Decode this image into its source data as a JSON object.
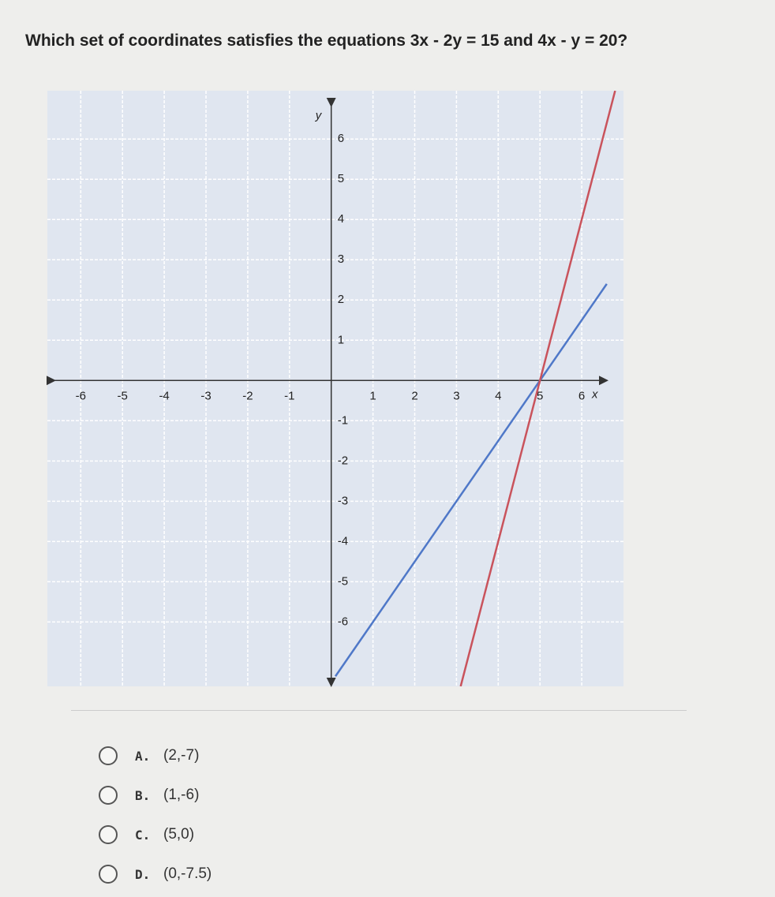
{
  "question": "Which set of coordinates satisfies the equations 3x - 2y = 15 and 4x - y = 20?",
  "chart_data": {
    "type": "line",
    "xlabel": "x",
    "ylabel": "y",
    "xlim": [
      -6.8,
      7.0
    ],
    "ylim": [
      -7.6,
      7.2
    ],
    "xticks": [
      -6,
      -5,
      -4,
      -3,
      -2,
      -1,
      1,
      2,
      3,
      4,
      5,
      6
    ],
    "yticks": [
      -6,
      -5,
      -4,
      -3,
      -2,
      -1,
      1,
      2,
      3,
      4,
      5,
      6
    ],
    "grid": true,
    "series": [
      {
        "color": "#4f78c8",
        "x": [
          0.1,
          6.6
        ],
        "values": [
          -7.35,
          2.4
        ]
      },
      {
        "color": "#c9535c",
        "x": [
          3.1,
          6.8
        ],
        "values": [
          -7.6,
          7.2
        ]
      }
    ]
  },
  "options": [
    {
      "letter": "A.",
      "text": "(2,-7)"
    },
    {
      "letter": "B.",
      "text": "(1,-6)"
    },
    {
      "letter": "C.",
      "text": "(5,0)"
    },
    {
      "letter": "D.",
      "text": "(0,-7.5)"
    }
  ]
}
